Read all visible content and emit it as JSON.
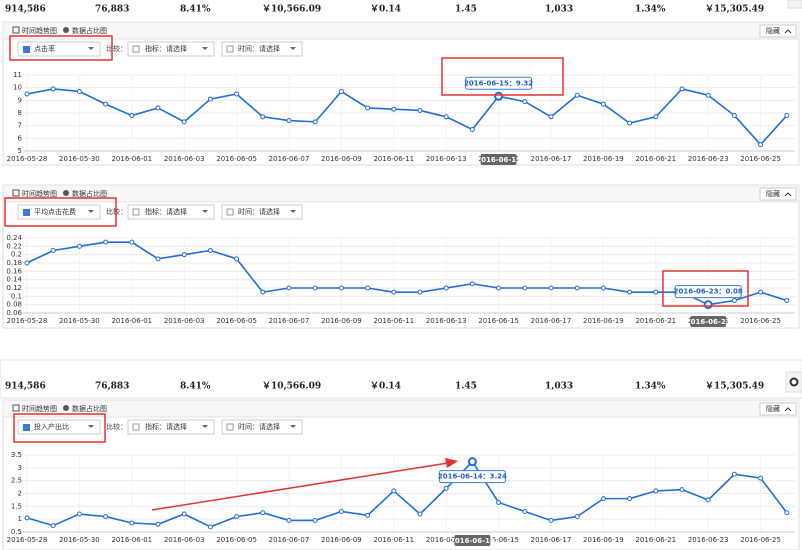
{
  "stats_top": [
    "914,586",
    "76,883",
    "8.41%",
    "￥10,566.09",
    "￥0.14",
    "1.45",
    "1,033",
    "1.34%",
    "￥15,305.49"
  ],
  "stats_mid": [
    "914,586",
    "76,883",
    "8.41%",
    "￥10,566.09",
    "￥0.14",
    "1.45",
    "1,033",
    "1.34%",
    "￥15,305.49"
  ],
  "panels": [
    {
      "tabs": [
        "时间趋势图",
        "数据占比图"
      ],
      "hide": "隐藏",
      "metric": "点击率",
      "compare": "比较：",
      "indicator": "指标：请选择",
      "time": "时间：请选择"
    },
    {
      "tabs": [
        "时间趋势图",
        "数据占比图"
      ],
      "hide": "隐藏",
      "metric": "平均点击花费",
      "compare": "比较：",
      "indicator": "指标：请选择",
      "time": "时间：请选择"
    },
    {
      "tabs": [
        "时间趋势图",
        "数据占比图"
      ],
      "hide": "隐藏",
      "metric": "投入产出比",
      "compare": "比较：",
      "indicator": "指标：请选择",
      "time": "时间：请选择"
    }
  ],
  "chart_data": [
    {
      "type": "line",
      "grid": true,
      "categories": [
        "2016-05-28",
        null,
        "2016-05-30",
        null,
        "2016-06-01",
        null,
        "2016-06-03",
        null,
        "2016-06-05",
        null,
        "2016-06-07",
        null,
        "2016-06-09",
        null,
        "2016-06-11",
        null,
        "2016-06-13",
        null,
        "2016-06-15",
        null,
        "2016-06-17",
        null,
        "2016-06-19",
        null,
        "2016-06-21",
        null,
        "2016-06-23",
        null,
        "2016-06-25",
        null
      ],
      "series": [
        {
          "color": "#1e6fd9",
          "values": [
            9.5,
            9.9,
            9.7,
            8.7,
            7.8,
            8.4,
            7.3,
            9.1,
            9.5,
            7.7,
            7.4,
            7.3,
            9.7,
            8.4,
            8.3,
            8.2,
            7.7,
            6.7,
            9.32,
            8.9,
            7.7,
            9.4,
            8.7,
            7.2,
            7.7,
            9.9,
            9.4,
            7.8,
            5.5,
            7.8
          ]
        }
      ],
      "ylim": [
        5,
        11
      ],
      "yticks": [
        5,
        6,
        7,
        8,
        9,
        10,
        11
      ],
      "tooltip": "2016-06-15：9.32",
      "active_label": "2016-06-15"
    },
    {
      "type": "line",
      "grid": true,
      "categories": [
        "2016-05-28",
        null,
        "2016-05-30",
        null,
        "2016-06-01",
        null,
        "2016-06-03",
        null,
        "2016-06-05",
        null,
        "2016-06-07",
        null,
        "2016-06-09",
        null,
        "2016-06-11",
        null,
        "2016-06-13",
        null,
        "2016-06-15",
        null,
        "2016-06-17",
        null,
        "2016-06-19",
        null,
        "2016-06-21",
        null,
        "2016-06-23",
        null,
        "2016-06-25",
        null
      ],
      "series": [
        {
          "color": "#1e6fd9",
          "values": [
            0.18,
            0.21,
            0.22,
            0.23,
            0.23,
            0.19,
            0.2,
            0.21,
            0.19,
            0.11,
            0.12,
            0.12,
            0.12,
            0.12,
            0.11,
            0.11,
            0.12,
            0.13,
            0.12,
            0.12,
            0.12,
            0.12,
            0.12,
            0.11,
            0.11,
            0.11,
            0.08,
            0.09,
            0.11,
            0.09
          ]
        }
      ],
      "ylim": [
        0.06,
        0.24
      ],
      "yticks": [
        0.06,
        0.08,
        0.1,
        0.12,
        0.14,
        0.16,
        0.18,
        0.2,
        0.22,
        0.24
      ],
      "tooltip": "2016-06-23：0.08",
      "active_label": "2016-06-23"
    },
    {
      "type": "line",
      "grid": true,
      "categories": [
        "2016-05-28",
        null,
        "2016-05-30",
        null,
        "2016-06-01",
        null,
        "2016-06-03",
        null,
        "2016-06-05",
        null,
        "2016-06-07",
        null,
        "2016-06-09",
        null,
        "2016-06-11",
        null,
        "2016-06-13",
        null,
        "2016-06-15",
        null,
        "2016-06-17",
        null,
        "2016-06-19",
        null,
        "2016-06-21",
        null,
        "2016-06-23",
        null,
        "2016-06-25",
        null
      ],
      "series": [
        {
          "color": "#1e6fd9",
          "values": [
            1.05,
            0.75,
            1.2,
            1.1,
            0.85,
            0.8,
            1.2,
            0.7,
            1.1,
            1.25,
            0.95,
            0.95,
            1.3,
            1.15,
            2.1,
            1.2,
            2.2,
            3.24,
            1.65,
            1.3,
            0.95,
            1.1,
            1.8,
            1.8,
            2.1,
            2.15,
            1.75,
            2.75,
            2.6,
            1.25
          ]
        }
      ],
      "ylim": [
        0.5,
        3.5
      ],
      "yticks": [
        0.5,
        1,
        1.5,
        2,
        2.5,
        3,
        3.5
      ],
      "tooltip": "2016-06-14：3.24",
      "active_label": "2016-06-14"
    }
  ]
}
